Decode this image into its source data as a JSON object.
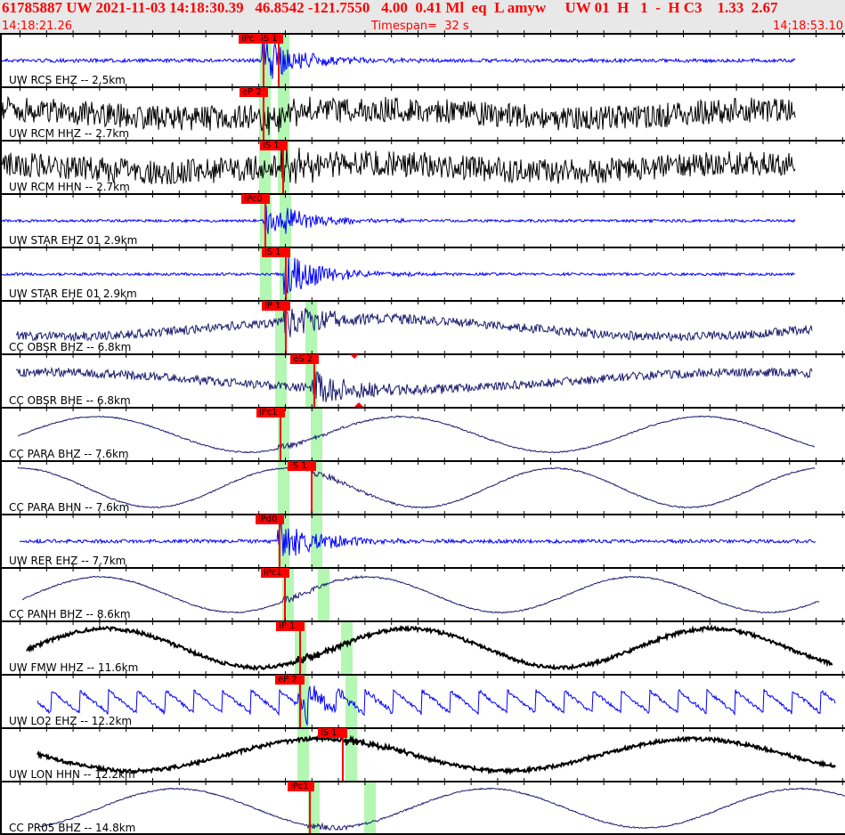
{
  "header": {
    "title": "61785887 UW 2021-11-03 14:18:30.39   46.8542 -121.7550   4.00  0.41 Ml  eq  L amyw     UW 01  H   1  -  H C3    1.33  2.67",
    "start_time": "14:18:21.26",
    "timespan": "Timespan=  32 s",
    "end_time": "14:18:53.10"
  },
  "colors": {
    "header_bg": "#e8e8e8",
    "header_text": "#ff0000",
    "pick": "#ff0000",
    "window": "#b3f7b3",
    "blue": "#0000ff",
    "navy": "#1c1c6e",
    "black": "#000000"
  },
  "channels": [
    {
      "label": "UW RCS EHZ -- 2.5km",
      "picks": [
        "iPc",
        "iS 1"
      ],
      "color": "blue"
    },
    {
      "label": "UW RCM HHZ -- 2.7km",
      "picks": [
        "eP 2"
      ],
      "color": "black"
    },
    {
      "label": "UW RCM HHN -- 2.7km",
      "picks": [
        "iS 1"
      ],
      "color": "black"
    },
    {
      "label": "UW STAR EHZ 01 2.9km",
      "picks": [
        "iPc0"
      ],
      "color": "blue"
    },
    {
      "label": "UW STAR EHE 01 2.9km",
      "picks": [
        "iS 1"
      ],
      "color": "blue"
    },
    {
      "label": "CC OBSR BHZ -- 6.8km",
      "picks": [
        "iP 1"
      ],
      "color": "navy"
    },
    {
      "label": "CC OBSR BHE -- 6.8km",
      "picks": [
        "eS 2"
      ],
      "color": "navy"
    },
    {
      "label": "CC PARA BHZ -- 7.6km",
      "picks": [
        "iPc1"
      ],
      "color": "navy"
    },
    {
      "label": "CC PARA BHN -- 7.6km",
      "picks": [
        "iS 1"
      ],
      "color": "navy"
    },
    {
      "label": "UW RER EHZ -- 7.7km",
      "picks": [
        "iPd0"
      ],
      "color": "blue"
    },
    {
      "label": "CC PANH BHZ -- 8.6km",
      "picks": [
        "iPc1"
      ],
      "color": "navy"
    },
    {
      "label": "UW FMW HHZ -- 11.6km",
      "picks": [
        "iP 1"
      ],
      "color": "black"
    },
    {
      "label": "UW LO2 EHZ -- 12.2km",
      "picks": [
        "eP 2"
      ],
      "color": "blue"
    },
    {
      "label": "UW LON HHN -- 12.2km",
      "picks": [
        "iS 1"
      ],
      "color": "black"
    },
    {
      "label": "CC PR05 BHZ -- 14.8km",
      "picks": [
        "iPc1"
      ],
      "color": "navy"
    }
  ]
}
